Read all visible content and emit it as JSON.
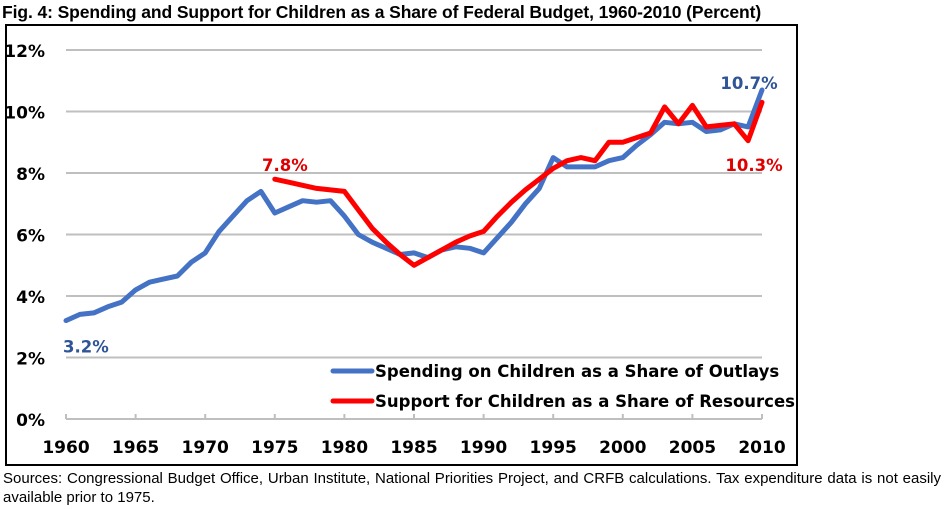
{
  "title": "Fig. 4: Spending and Support for Children as a Share of Federal Budget, 1960-2010 (Percent)",
  "sources": "Sources: Congressional Budget Office, Urban Institute, National Priorities Project, and CRFB calculations. Tax expenditure data is not easily available prior to 1975.",
  "chart_data": {
    "type": "line",
    "title": "Fig. 4: Spending and Support for Children as a Share of Federal Budget, 1960-2010 (Percent)",
    "xlabel": "",
    "ylabel": "",
    "xlim": [
      1960,
      2010
    ],
    "ylim": [
      0,
      12
    ],
    "x_ticks": [
      1960,
      1965,
      1970,
      1975,
      1980,
      1985,
      1990,
      1995,
      2000,
      2005,
      2010
    ],
    "x_tick_labels": [
      "1960",
      "1965",
      "1970",
      "1975",
      "1980",
      "1985",
      "1990",
      "1995",
      "2000",
      "2005",
      "2010"
    ],
    "y_ticks": [
      0,
      2,
      4,
      6,
      8,
      10,
      12
    ],
    "y_tick_labels": [
      "0%",
      "2%",
      "4%",
      "6%",
      "8%",
      "10%",
      "12%"
    ],
    "grid": true,
    "legend_position": "bottom-right",
    "series": [
      {
        "name": "Spending on Children as a Share of Outlays",
        "color": "#4472C4",
        "x": [
          1960,
          1961,
          1962,
          1963,
          1964,
          1965,
          1966,
          1967,
          1968,
          1969,
          1970,
          1971,
          1972,
          1973,
          1974,
          1975,
          1976,
          1977,
          1978,
          1979,
          1980,
          1981,
          1982,
          1983,
          1984,
          1985,
          1986,
          1987,
          1988,
          1989,
          1990,
          1991,
          1992,
          1993,
          1994,
          1995,
          1996,
          1997,
          1998,
          1999,
          2000,
          2001,
          2002,
          2003,
          2004,
          2005,
          2006,
          2007,
          2008,
          2009,
          2010
        ],
        "values": [
          3.2,
          3.4,
          3.45,
          3.65,
          3.8,
          4.2,
          4.45,
          4.55,
          4.65,
          5.1,
          5.4,
          6.1,
          6.6,
          7.1,
          7.4,
          6.7,
          6.9,
          7.1,
          7.05,
          7.1,
          6.6,
          6.0,
          5.75,
          5.55,
          5.35,
          5.4,
          5.25,
          5.5,
          5.6,
          5.55,
          5.4,
          5.9,
          6.4,
          7.0,
          7.5,
          8.5,
          8.2,
          8.2,
          8.2,
          8.4,
          8.5,
          8.9,
          9.25,
          9.65,
          9.6,
          9.65,
          9.35,
          9.4,
          9.6,
          9.5,
          10.7
        ]
      },
      {
        "name": "Support for Children as a Share of Resources",
        "color": "#FF0000",
        "x": [
          1975,
          1976,
          1977,
          1978,
          1979,
          1980,
          1981,
          1982,
          1983,
          1984,
          1985,
          1986,
          1987,
          1988,
          1989,
          1990,
          1991,
          1992,
          1993,
          1994,
          1995,
          1996,
          1997,
          1998,
          1999,
          2000,
          2001,
          2002,
          2003,
          2004,
          2005,
          2006,
          2007,
          2008,
          2009,
          2010
        ],
        "values": [
          7.8,
          7.7,
          7.6,
          7.5,
          7.45,
          7.4,
          6.8,
          6.2,
          5.75,
          5.35,
          5.0,
          5.25,
          5.5,
          5.75,
          5.95,
          6.1,
          6.6,
          7.05,
          7.45,
          7.8,
          8.15,
          8.4,
          8.5,
          8.4,
          9.0,
          9.0,
          9.15,
          9.3,
          10.15,
          9.6,
          10.2,
          9.5,
          9.55,
          9.6,
          9.05,
          10.3
        ]
      }
    ],
    "annotations": [
      {
        "text": "3.2%",
        "series": 0,
        "x": 1960,
        "y": 3.2,
        "color": "#2F5597"
      },
      {
        "text": "7.8%",
        "series": 1,
        "x": 1975,
        "y": 7.8,
        "color": "#E00000"
      },
      {
        "text": "10.7%",
        "series": 0,
        "x": 2010,
        "y": 10.7,
        "color": "#2F5597"
      },
      {
        "text": "10.3%",
        "series": 1,
        "x": 2010,
        "y": 10.3,
        "color": "#E00000"
      }
    ],
    "gridline_color": "#BFBFBF"
  }
}
